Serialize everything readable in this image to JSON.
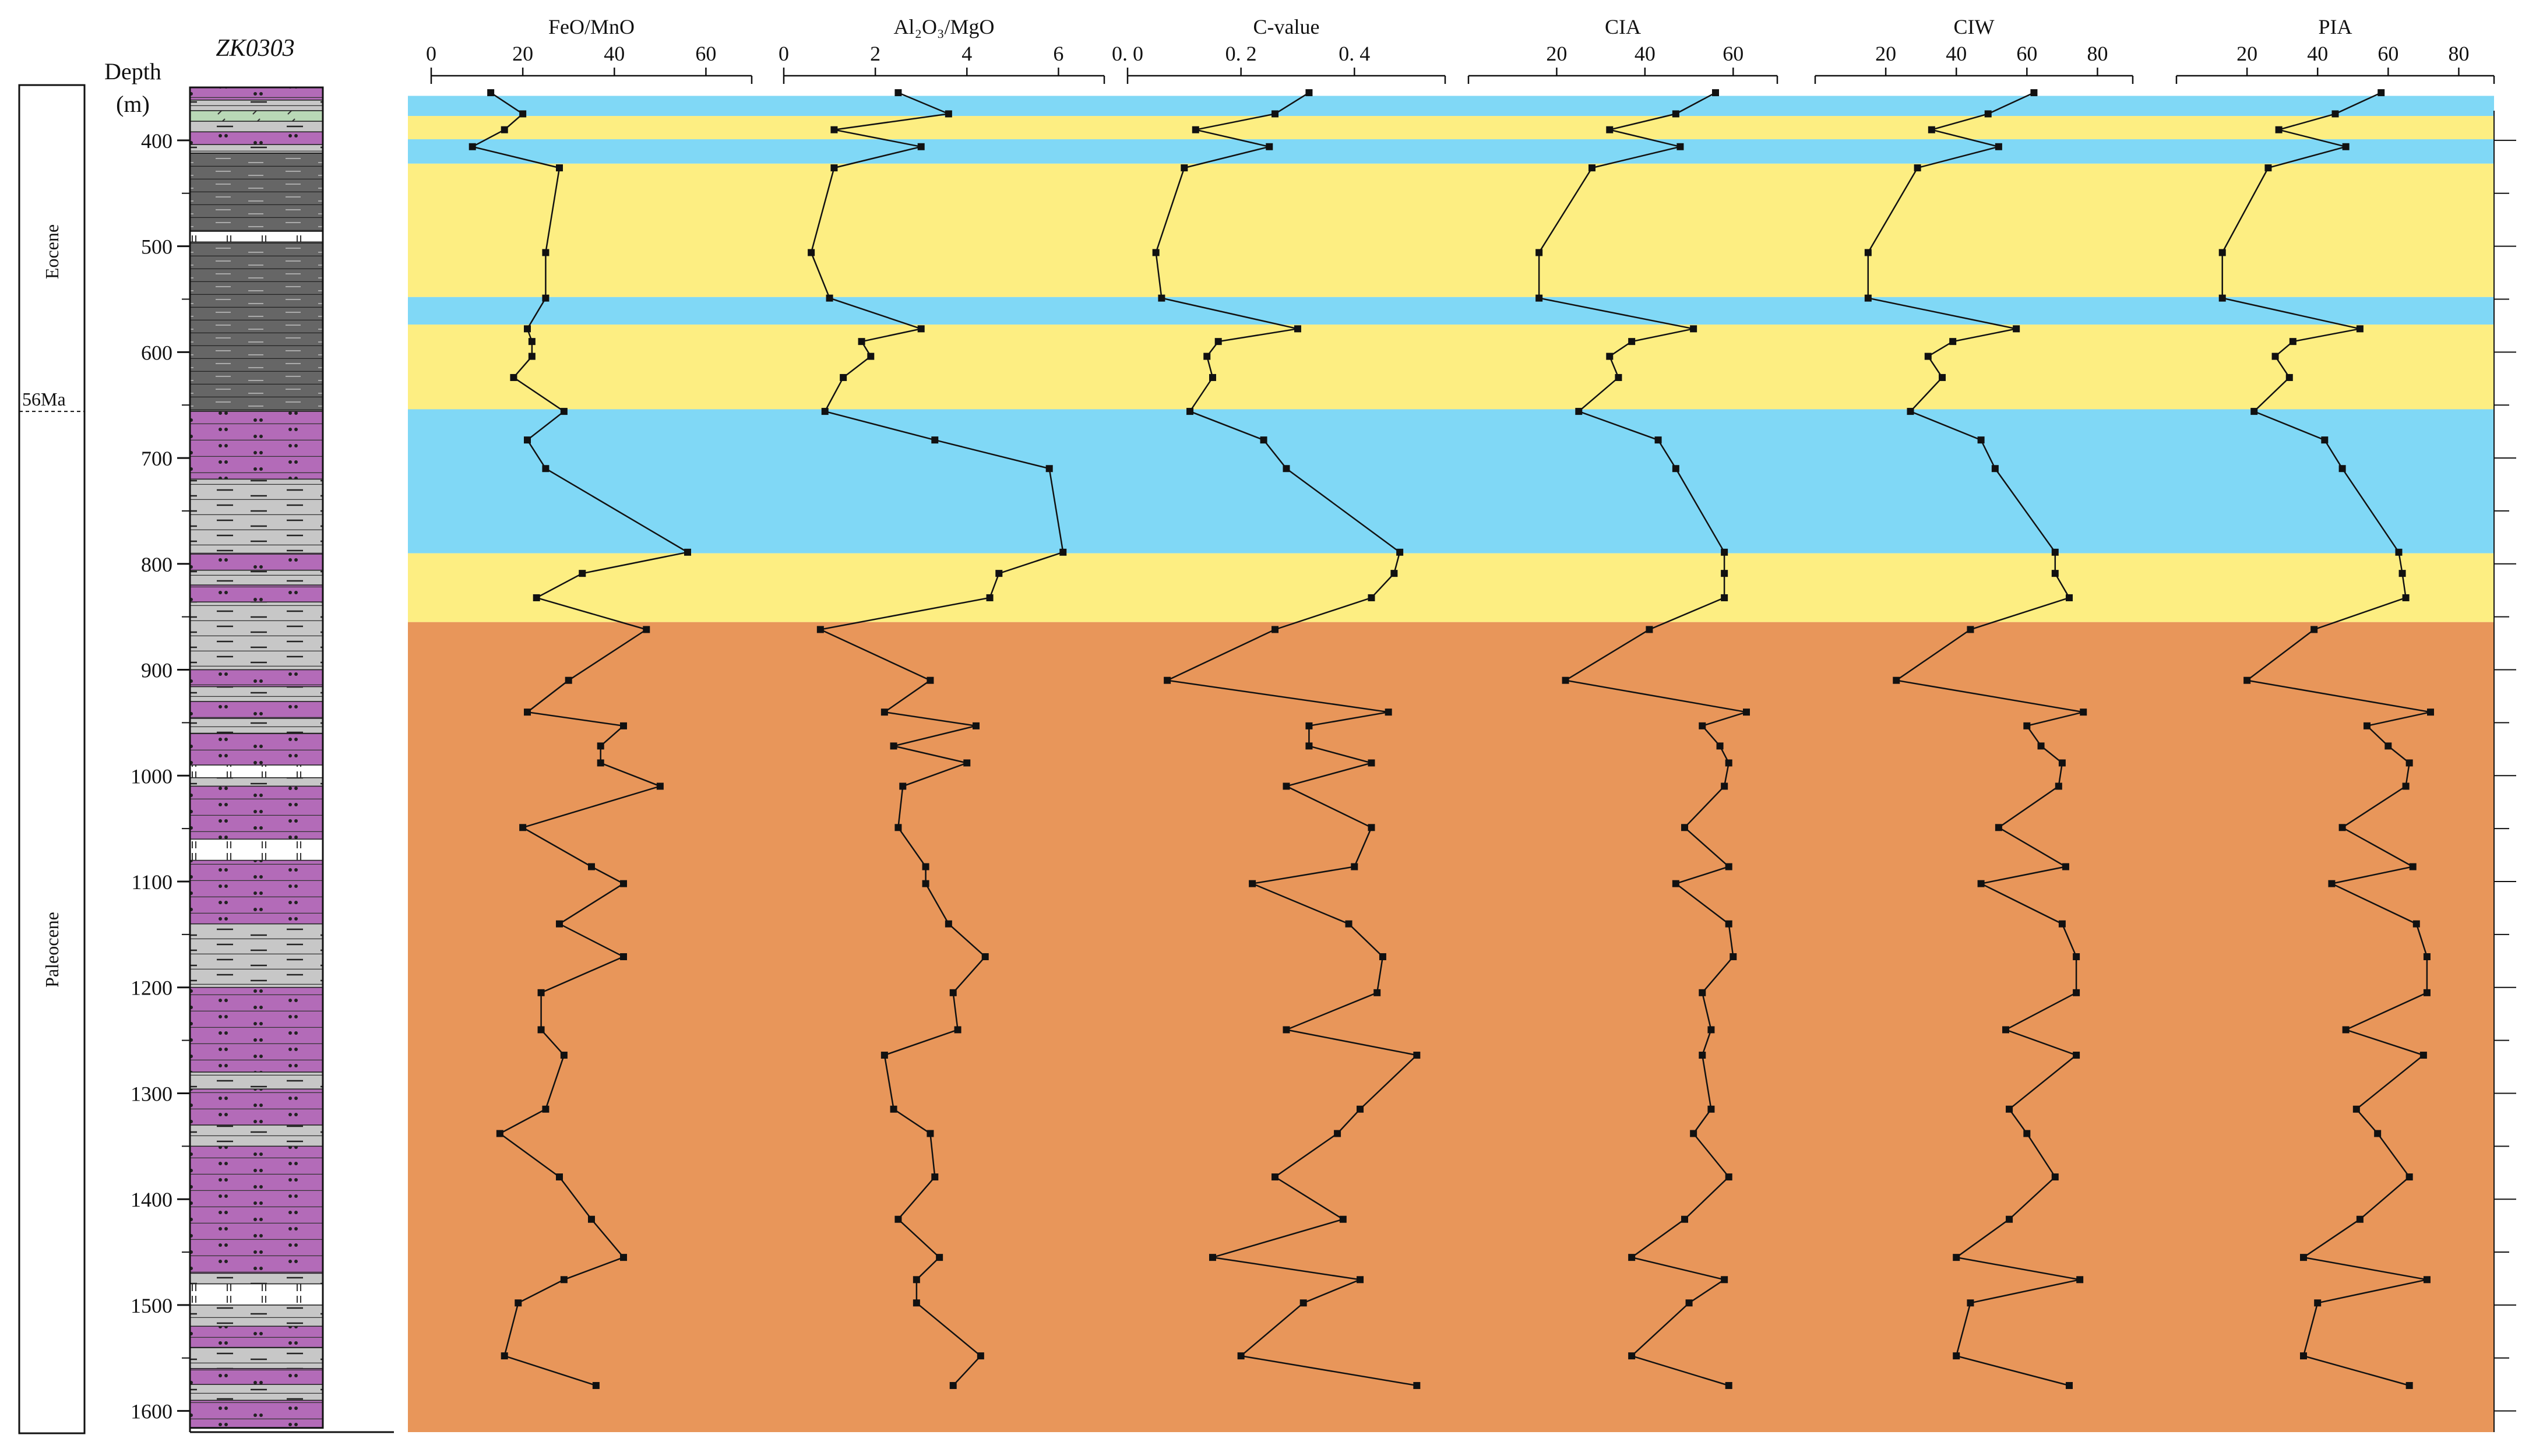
{
  "chart_data": {
    "type": "line",
    "well_name": "ZK0303",
    "depth_axis": {
      "label_line1": "Depth",
      "label_line2": "(m)",
      "range": [
        350,
        1620
      ],
      "ticks": [
        400,
        500,
        600,
        700,
        800,
        900,
        1000,
        1100,
        1200,
        1300,
        1400,
        1500,
        1600
      ],
      "tick_labels": [
        "400",
        "500",
        "600",
        "700",
        "800",
        "900",
        "1000",
        "1100",
        "1200",
        "1300",
        "1400",
        "1500",
        "1600"
      ],
      "minor_ticks": [
        450,
        550,
        650,
        750,
        850,
        950,
        1050,
        1150,
        1250,
        1350,
        1450,
        1550
      ]
    },
    "stratigraphy": {
      "epochs": [
        {
          "name": "Eocene",
          "top": 350,
          "bottom": 656
        },
        {
          "name": "Paleocene",
          "top": 656,
          "bottom": 1620
        }
      ],
      "boundary_label": "56Ma",
      "boundary_depth": 656
    },
    "lithology_column": [
      {
        "top": 350,
        "bottom": 362,
        "type": "purple"
      },
      {
        "top": 362,
        "bottom": 372,
        "type": "gray"
      },
      {
        "top": 372,
        "bottom": 382,
        "type": "green"
      },
      {
        "top": 382,
        "bottom": 392,
        "type": "gray"
      },
      {
        "top": 392,
        "bottom": 404,
        "type": "purple"
      },
      {
        "top": 404,
        "bottom": 412,
        "type": "gray"
      },
      {
        "top": 412,
        "bottom": 486,
        "type": "dark"
      },
      {
        "top": 486,
        "bottom": 496,
        "type": "white"
      },
      {
        "top": 496,
        "bottom": 656,
        "type": "dark"
      },
      {
        "top": 656,
        "bottom": 720,
        "type": "purple"
      },
      {
        "top": 720,
        "bottom": 790,
        "type": "gray"
      },
      {
        "top": 790,
        "bottom": 806,
        "type": "purple"
      },
      {
        "top": 806,
        "bottom": 820,
        "type": "gray"
      },
      {
        "top": 820,
        "bottom": 836,
        "type": "purple"
      },
      {
        "top": 836,
        "bottom": 900,
        "type": "gray"
      },
      {
        "top": 900,
        "bottom": 916,
        "type": "purple"
      },
      {
        "top": 916,
        "bottom": 930,
        "type": "gray"
      },
      {
        "top": 930,
        "bottom": 946,
        "type": "purple"
      },
      {
        "top": 946,
        "bottom": 960,
        "type": "gray"
      },
      {
        "top": 960,
        "bottom": 990,
        "type": "purple"
      },
      {
        "top": 990,
        "bottom": 1002,
        "type": "white"
      },
      {
        "top": 1002,
        "bottom": 1010,
        "type": "gray"
      },
      {
        "top": 1010,
        "bottom": 1060,
        "type": "purple"
      },
      {
        "top": 1060,
        "bottom": 1080,
        "type": "white"
      },
      {
        "top": 1080,
        "bottom": 1140,
        "type": "purple"
      },
      {
        "top": 1140,
        "bottom": 1200,
        "type": "gray"
      },
      {
        "top": 1200,
        "bottom": 1280,
        "type": "purple"
      },
      {
        "top": 1280,
        "bottom": 1296,
        "type": "gray"
      },
      {
        "top": 1296,
        "bottom": 1330,
        "type": "purple"
      },
      {
        "top": 1330,
        "bottom": 1350,
        "type": "gray"
      },
      {
        "top": 1350,
        "bottom": 1470,
        "type": "purple"
      },
      {
        "top": 1470,
        "bottom": 1480,
        "type": "gray"
      },
      {
        "top": 1480,
        "bottom": 1500,
        "type": "white"
      },
      {
        "top": 1500,
        "bottom": 1520,
        "type": "gray"
      },
      {
        "top": 1520,
        "bottom": 1540,
        "type": "purple"
      },
      {
        "top": 1540,
        "bottom": 1560,
        "type": "gray"
      },
      {
        "top": 1560,
        "bottom": 1575,
        "type": "purple"
      },
      {
        "top": 1575,
        "bottom": 1590,
        "type": "gray"
      },
      {
        "top": 1590,
        "bottom": 1616,
        "type": "purple"
      }
    ],
    "background_bands": [
      {
        "top": 350,
        "bottom": 358,
        "color": "#ffffff"
      },
      {
        "top": 358,
        "bottom": 377,
        "color": "#80d8f6"
      },
      {
        "top": 377,
        "bottom": 399,
        "color": "#fdee82"
      },
      {
        "top": 399,
        "bottom": 422,
        "color": "#80d8f6"
      },
      {
        "top": 422,
        "bottom": 548,
        "color": "#fdee82"
      },
      {
        "top": 548,
        "bottom": 574,
        "color": "#80d8f6"
      },
      {
        "top": 574,
        "bottom": 654,
        "color": "#fdee82"
      },
      {
        "top": 654,
        "bottom": 790,
        "color": "#80d8f6"
      },
      {
        "top": 790,
        "bottom": 855,
        "color": "#fdee82"
      },
      {
        "top": 855,
        "bottom": 1620,
        "color": "#e8965a"
      }
    ],
    "depths": [
      355,
      375,
      390,
      406,
      426,
      506,
      549,
      578,
      590,
      604,
      624,
      656,
      683,
      710,
      789,
      809,
      832,
      862,
      910,
      940,
      953,
      972,
      988,
      1010,
      1049,
      1086,
      1102,
      1140,
      1171,
      1205,
      1240,
      1264,
      1315,
      1338,
      1379,
      1419,
      1455,
      1476,
      1498,
      1548,
      1576
    ],
    "series": [
      {
        "name": "FeO/MnO",
        "xlim": [
          0,
          70
        ],
        "ticks": [
          0,
          20,
          40,
          60
        ],
        "tick_labels": [
          "0",
          "20",
          "40",
          "60"
        ],
        "values": [
          13,
          20,
          16,
          9,
          28,
          25,
          25,
          21,
          22,
          22,
          18,
          29,
          21,
          25,
          56,
          33,
          23,
          47,
          30,
          21,
          42,
          37,
          37,
          50,
          20,
          35,
          42,
          28,
          42,
          24,
          24,
          29,
          25,
          15,
          28,
          35,
          42,
          29,
          19,
          16,
          36
        ]
      },
      {
        "name": "Al₂O₃/MgO",
        "xlim": [
          0,
          7
        ],
        "ticks": [
          0,
          2,
          4,
          6
        ],
        "tick_labels": [
          "0",
          "2",
          "4",
          "6"
        ],
        "values": [
          2.5,
          3.6,
          1.1,
          3.0,
          1.1,
          0.6,
          1.0,
          3.0,
          1.7,
          1.9,
          1.3,
          0.9,
          3.3,
          5.8,
          6.1,
          4.7,
          4.5,
          0.8,
          3.2,
          2.2,
          4.2,
          2.4,
          4.0,
          2.6,
          2.5,
          3.1,
          3.1,
          3.6,
          4.4,
          3.7,
          3.8,
          2.2,
          2.4,
          3.2,
          3.3,
          2.5,
          3.4,
          2.9,
          2.9,
          4.3,
          3.7
        ]
      },
      {
        "name": "C-value",
        "xlim": [
          0,
          0.56
        ],
        "ticks": [
          0,
          0.2,
          0.4
        ],
        "tick_labels": [
          "0. 0",
          "0. 2",
          "0. 4"
        ],
        "values": [
          0.32,
          0.26,
          0.12,
          0.25,
          0.1,
          0.05,
          0.06,
          0.3,
          0.16,
          0.14,
          0.15,
          0.11,
          0.24,
          0.28,
          0.48,
          0.47,
          0.43,
          0.26,
          0.07,
          0.46,
          0.32,
          0.32,
          0.43,
          0.28,
          0.43,
          0.4,
          0.22,
          0.39,
          0.45,
          0.44,
          0.28,
          0.51,
          0.41,
          0.37,
          0.26,
          0.38,
          0.15,
          0.41,
          0.31,
          0.2,
          0.51
        ]
      },
      {
        "name": "CIA",
        "xlim": [
          0,
          70
        ],
        "ticks": [
          20,
          40,
          60
        ],
        "tick_labels": [
          "20",
          "40",
          "60"
        ],
        "values": [
          56,
          47,
          32,
          48,
          28,
          16,
          16,
          51,
          37,
          32,
          34,
          25,
          43,
          47,
          58,
          58,
          58,
          41,
          22,
          63,
          53,
          57,
          59,
          58,
          49,
          59,
          47,
          59,
          60,
          53,
          55,
          53,
          55,
          51,
          59,
          49,
          37,
          58,
          50,
          37,
          59
        ]
      },
      {
        "name": "CIW",
        "xlim": [
          0,
          90
        ],
        "ticks": [
          20,
          40,
          60,
          80
        ],
        "tick_labels": [
          "20",
          "40",
          "60",
          "80"
        ],
        "values": [
          62,
          49,
          33,
          52,
          29,
          15,
          15,
          57,
          39,
          32,
          36,
          27,
          47,
          51,
          68,
          68,
          72,
          44,
          23,
          76,
          60,
          64,
          70,
          69,
          52,
          71,
          47,
          70,
          74,
          74,
          54,
          74,
          55,
          60,
          68,
          55,
          40,
          75,
          44,
          40,
          72
        ]
      },
      {
        "name": "PIA",
        "xlim": [
          0,
          90
        ],
        "ticks": [
          20,
          40,
          60,
          80
        ],
        "tick_labels": [
          "20",
          "40",
          "60",
          "80"
        ],
        "values": [
          58,
          45,
          29,
          48,
          26,
          13,
          13,
          52,
          33,
          28,
          32,
          22,
          42,
          47,
          63,
          64,
          65,
          39,
          20,
          72,
          54,
          60,
          66,
          65,
          47,
          67,
          44,
          68,
          71,
          71,
          48,
          70,
          51,
          57,
          66,
          52,
          36,
          71,
          40,
          36,
          66
        ]
      }
    ]
  }
}
